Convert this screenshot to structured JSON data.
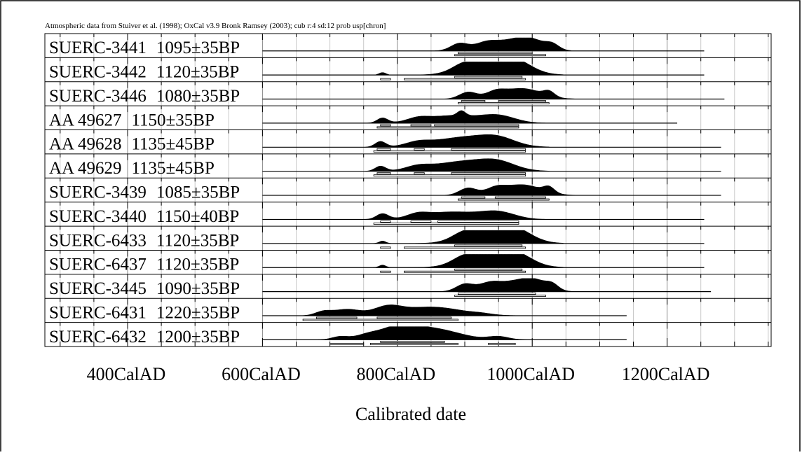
{
  "chart_data": {
    "type": "calibration-plot",
    "title": "Atmospheric data from Stuiver et al. (1998); OxCal v3.9 Bronk Ramsey (2003); cub r:4 sd:12 prob usp[chron]",
    "xlabel": "Calibrated date",
    "x_range": [
      250,
      1350
    ],
    "tick_labels": [
      {
        "value": 400,
        "label": "400CalAD"
      },
      {
        "value": 600,
        "label": "600CalAD"
      },
      {
        "value": 800,
        "label": "800CalAD"
      },
      {
        "value": 1000,
        "label": "1000CalAD"
      },
      {
        "value": 1200,
        "label": "1200CalAD"
      }
    ],
    "major_ticks": [
      400,
      600,
      800,
      1000,
      1200
    ],
    "minor_step": 50,
    "series": [
      {
        "lab": "SUERC-3441",
        "age": "1095±35BP",
        "line": [
          600,
          1255
        ],
        "peaks": [
          [
            892,
            58,
            13
          ],
          [
            930,
            45,
            16
          ],
          [
            970,
            80,
            30
          ],
          [
            1000,
            55,
            20
          ],
          [
            1030,
            40,
            10
          ]
        ],
        "ranges": [
          [
            [
              890,
              1000
            ]
          ],
          [
            [
              885,
              1020
            ]
          ]
        ]
      },
      {
        "lab": "SUERC-3442",
        "age": "1120±35BP",
        "line": [
          600,
          1255
        ],
        "peaks": [
          [
            778,
            20,
            5
          ],
          [
            900,
            55,
            18
          ],
          [
            940,
            90,
            38
          ],
          [
            975,
            75,
            24
          ]
        ],
        "ranges": [
          [
            [
              885,
              985
            ]
          ],
          [
            [
              775,
              790
            ],
            [
              810,
              990
            ]
          ]
        ]
      },
      {
        "lab": "SUERC-3446",
        "age": "1080±35BP",
        "line": [
          600,
          1285
        ],
        "peaks": [
          [
            905,
            55,
            13
          ],
          [
            945,
            45,
            14
          ],
          [
            985,
            85,
            28
          ],
          [
            1025,
            40,
            8
          ]
        ],
        "ranges": [
          [
            [
              895,
              930
            ],
            [
              950,
              1020
            ]
          ]
        ],
        "ranges2": [
          [
            890,
            1025
          ]
        ]
      },
      {
        "lab": "AA 49627",
        "age": "1150±35BP",
        "line": [
          600,
          1215
        ],
        "peaks": [
          [
            778,
            40,
            8
          ],
          [
            830,
            25,
            15
          ],
          [
            880,
            60,
            40
          ],
          [
            895,
            40,
            6
          ],
          [
            950,
            55,
            25
          ]
        ],
        "ranges": [
          [
            [
              775,
              790
            ],
            [
              820,
              850
            ],
            [
              855,
              980
            ]
          ]
        ],
        "ranges2": [
          [
            770,
            980
          ]
        ]
      },
      {
        "lab": "AA 49628",
        "age": "1135±45BP",
        "line": [
          600,
          1280
        ],
        "peaks": [
          [
            775,
            45,
            8
          ],
          [
            830,
            30,
            18
          ],
          [
            900,
            80,
            45
          ],
          [
            950,
            50,
            25
          ]
        ],
        "ranges": [
          [
            [
              770,
              790
            ],
            [
              825,
              840
            ],
            [
              880,
              990
            ]
          ]
        ],
        "ranges2": [
          [
            765,
            990
          ]
        ]
      },
      {
        "lab": "AA 49629",
        "age": "1135±45BP",
        "line": [
          600,
          1280
        ],
        "peaks": [
          [
            775,
            40,
            8
          ],
          [
            830,
            30,
            18
          ],
          [
            900,
            80,
            45
          ],
          [
            950,
            50,
            25
          ]
        ],
        "ranges": [
          [
            [
              770,
              790
            ],
            [
              825,
              840
            ],
            [
              880,
              990
            ]
          ]
        ],
        "ranges2": [
          [
            765,
            990
          ]
        ]
      },
      {
        "lab": "SUERC-3439",
        "age": "1085±35BP",
        "line": [
          600,
          1280
        ],
        "peaks": [
          [
            905,
            58,
            13
          ],
          [
            945,
            45,
            14
          ],
          [
            985,
            85,
            28
          ],
          [
            1025,
            45,
            8
          ]
        ],
        "ranges": [
          [
            [
              895,
              930
            ],
            [
              945,
              1020
            ]
          ]
        ],
        "ranges2": [
          [
            890,
            1025
          ]
        ]
      },
      {
        "lab": "SUERC-3440",
        "age": "1150±40BP",
        "line": [
          600,
          1255
        ],
        "peaks": [
          [
            778,
            45,
            9
          ],
          [
            830,
            30,
            15
          ],
          [
            880,
            60,
            40
          ],
          [
            950,
            55,
            25
          ]
        ],
        "ranges": [
          [
            [
              775,
              790
            ],
            [
              820,
              850
            ],
            [
              860,
              980
            ]
          ]
        ],
        "ranges2": [
          [
            765,
            980
          ]
        ]
      },
      {
        "lab": "SUERC-6433",
        "age": "1120±35BP",
        "line": [
          600,
          1255
        ],
        "peaks": [
          [
            778,
            20,
            5
          ],
          [
            900,
            55,
            18
          ],
          [
            940,
            90,
            38
          ],
          [
            975,
            75,
            24
          ]
        ],
        "ranges": [
          [
            [
              885,
              985
            ]
          ]
        ],
        "ranges2": [
          [
            775,
            790
          ],
          [
            810,
            990
          ]
        ]
      },
      {
        "lab": "SUERC-6437",
        "age": "1120±35BP",
        "line": [
          600,
          1255
        ],
        "peaks": [
          [
            778,
            20,
            5
          ],
          [
            900,
            55,
            18
          ],
          [
            940,
            90,
            38
          ],
          [
            975,
            75,
            24
          ]
        ],
        "ranges": [
          [
            [
              885,
              985
            ]
          ]
        ],
        "ranges2": [
          [
            775,
            790
          ],
          [
            810,
            990
          ]
        ]
      },
      {
        "lab": "SUERC-3445",
        "age": "1090±35BP",
        "line": [
          600,
          1265
        ],
        "peaks": [
          [
            900,
            58,
            13
          ],
          [
            935,
            45,
            15
          ],
          [
            975,
            80,
            30
          ],
          [
            1005,
            55,
            18
          ],
          [
            1030,
            40,
            9
          ]
        ],
        "ranges": [
          [
            [
              890,
              1005
            ]
          ]
        ],
        "ranges2": [
          [
            885,
            1020
          ]
        ]
      },
      {
        "lab": "SUERC-6431",
        "age": "1220±35BP",
        "line": [
          600,
          1140
        ],
        "peaks": [
          [
            690,
            30,
            12
          ],
          [
            725,
            50,
            20
          ],
          [
            785,
            60,
            20
          ],
          [
            850,
            70,
            45
          ],
          [
            925,
            8,
            15
          ]
        ],
        "ranges": [
          [
            [
              680,
              740
            ],
            [
              770,
              880
            ]
          ]
        ],
        "ranges2": [
          [
            660,
            890
          ]
        ]
      },
      {
        "lab": "SUERC-6432",
        "age": "1200±35BP",
        "line": [
          600,
          1140
        ],
        "peaks": [
          [
            715,
            25,
            12
          ],
          [
            755,
            35,
            18
          ],
          [
            800,
            80,
            25
          ],
          [
            850,
            90,
            40
          ],
          [
            950,
            25,
            15
          ]
        ],
        "ranges": [
          [
            [
              775,
              870
            ]
          ],
          [
            [
              700,
              750
            ],
            [
              760,
              890
            ],
            [
              935,
              975
            ]
          ]
        ]
      }
    ]
  }
}
